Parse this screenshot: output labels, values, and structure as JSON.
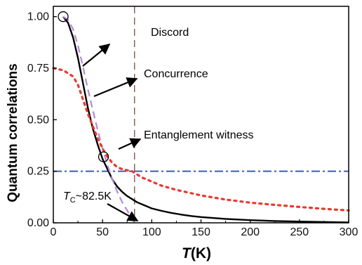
{
  "chart_data": {
    "type": "line",
    "xlabel": {
      "main": "T",
      "unit": "(K)"
    },
    "ylabel": "Quantum correlations",
    "xlim": [
      0,
      300
    ],
    "ylim": [
      0,
      1.05
    ],
    "xticks": [
      0,
      50,
      100,
      150,
      200,
      250,
      300
    ],
    "yticks": [
      0.0,
      0.25,
      0.5,
      0.75,
      1.0
    ],
    "xtick_labels": [
      "0",
      "50",
      "100",
      "150",
      "200",
      "250",
      "300"
    ],
    "ytick_labels": [
      "0.00",
      "0.25",
      "0.50",
      "0.75",
      "1.00"
    ],
    "grid": false,
    "series": [
      {
        "name": "Discord",
        "style": "solid",
        "color": "#000000",
        "x": [
          10,
          15,
          20,
          25,
          30,
          35,
          40,
          45,
          50,
          55,
          60,
          65,
          70,
          75,
          80,
          85,
          90,
          95,
          100,
          110,
          120,
          130,
          140,
          150,
          175,
          200,
          225,
          250,
          275,
          300
        ],
        "y": [
          1.0,
          0.97,
          0.9,
          0.8,
          0.68,
          0.56,
          0.46,
          0.38,
          0.31,
          0.26,
          0.21,
          0.175,
          0.15,
          0.13,
          0.115,
          0.1,
          0.09,
          0.08,
          0.07,
          0.058,
          0.048,
          0.04,
          0.033,
          0.028,
          0.019,
          0.013,
          0.009,
          0.006,
          0.004,
          0.002
        ]
      },
      {
        "name": "Concurrence",
        "style": "dashed",
        "color": "#b38bd6",
        "x": [
          10,
          15,
          20,
          25,
          30,
          35,
          40,
          45,
          50,
          55,
          60,
          65,
          70,
          75,
          80,
          82.5
        ],
        "y": [
          1.0,
          0.985,
          0.94,
          0.86,
          0.76,
          0.65,
          0.55,
          0.45,
          0.36,
          0.28,
          0.21,
          0.15,
          0.1,
          0.06,
          0.02,
          0.0
        ]
      },
      {
        "name": "Entanglement witness",
        "style": "dotted",
        "color": "#e8392e",
        "x": [
          0,
          10,
          20,
          25,
          30,
          35,
          40,
          45,
          50,
          55,
          60,
          65,
          70,
          75,
          80,
          85,
          90,
          100,
          110,
          125,
          150,
          175,
          200,
          225,
          250,
          275,
          300
        ],
        "y": [
          0.75,
          0.74,
          0.71,
          0.67,
          0.6,
          0.53,
          0.47,
          0.41,
          0.36,
          0.32,
          0.29,
          0.27,
          0.26,
          0.255,
          0.25,
          0.235,
          0.22,
          0.2,
          0.18,
          0.16,
          0.133,
          0.113,
          0.098,
          0.087,
          0.077,
          0.068,
          0.06
        ]
      }
    ],
    "reference_lines": [
      {
        "orientation": "horizontal",
        "value": 0.25,
        "style": "dash-dot",
        "color": "#3a5cb5"
      },
      {
        "orientation": "vertical",
        "value": 82.5,
        "style": "dashed",
        "color": "#7a3b2e"
      }
    ],
    "markers": [
      {
        "shape": "circle",
        "x": 10,
        "y": 1.0
      },
      {
        "shape": "circle",
        "x": 51,
        "y": 0.32
      }
    ],
    "annotations": [
      {
        "text": "Discord",
        "target": "Discord"
      },
      {
        "text": "Concurrence",
        "target": "Concurrence"
      },
      {
        "text": "Entanglement witness",
        "target": "Entanglement witness"
      },
      {
        "text_main": "T",
        "text_sub": "C",
        "text_rest": "~82.5K",
        "target": "Tc"
      }
    ]
  }
}
